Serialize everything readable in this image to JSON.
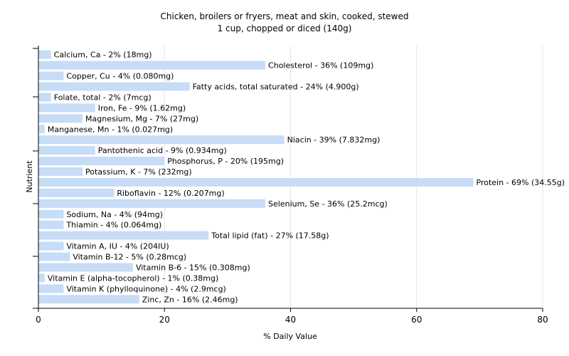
{
  "chart_data": {
    "type": "bar",
    "orientation": "horizontal",
    "title": "Chicken, broilers or fryers, meat and skin, cooked, stewed",
    "subtitle": "1 cup, chopped or diced (140g)",
    "xlabel": "% Daily Value",
    "ylabel": "Nutrient",
    "xlim": [
      0,
      80
    ],
    "xticks": [
      "0",
      "20",
      "40",
      "60",
      "80"
    ],
    "grid": true,
    "bar_color": "#c6dcf7",
    "categories": [
      "Calcium, Ca",
      "Cholesterol",
      "Copper, Cu",
      "Fatty acids, total saturated",
      "Folate, total",
      "Iron, Fe",
      "Magnesium, Mg",
      "Manganese, Mn",
      "Niacin",
      "Pantothenic acid",
      "Phosphorus, P",
      "Potassium, K",
      "Protein",
      "Riboflavin",
      "Selenium, Se",
      "Sodium, Na",
      "Thiamin",
      "Total lipid (fat)",
      "Vitamin A, IU",
      "Vitamin B-12",
      "Vitamin B-6",
      "Vitamin E (alpha-tocopherol)",
      "Vitamin K (phylloquinone)",
      "Zinc, Zn"
    ],
    "values": [
      2,
      36,
      4,
      24,
      2,
      9,
      7,
      1,
      39,
      9,
      20,
      7,
      69,
      12,
      36,
      4,
      4,
      27,
      4,
      5,
      15,
      1,
      4,
      16
    ],
    "labels": [
      "Calcium, Ca - 2% (18mg)",
      "Cholesterol - 36% (109mg)",
      "Copper, Cu - 4% (0.080mg)",
      "Fatty acids, total saturated - 24% (4.900g)",
      "Folate, total - 2% (7mcg)",
      "Iron, Fe - 9% (1.62mg)",
      "Magnesium, Mg - 7% (27mg)",
      "Manganese, Mn - 1% (0.027mg)",
      "Niacin - 39% (7.832mg)",
      "Pantothenic acid - 9% (0.934mg)",
      "Phosphorus, P - 20% (195mg)",
      "Potassium, K - 7% (232mg)",
      "Protein - 69% (34.55g)",
      "Riboflavin - 12% (0.207mg)",
      "Selenium, Se - 36% (25.2mcg)",
      "Sodium, Na - 4% (94mg)",
      "Thiamin - 4% (0.064mg)",
      "Total lipid (fat) - 27% (17.58g)",
      "Vitamin A, IU - 4% (204IU)",
      "Vitamin B-12 - 5% (0.28mcg)",
      "Vitamin B-6 - 15% (0.308mg)",
      "Vitamin E (alpha-tocopherol) - 1% (0.38mg)",
      "Vitamin K (phylloquinone) - 4% (2.9mcg)",
      "Zinc, Zn - 16% (2.46mg)"
    ]
  }
}
